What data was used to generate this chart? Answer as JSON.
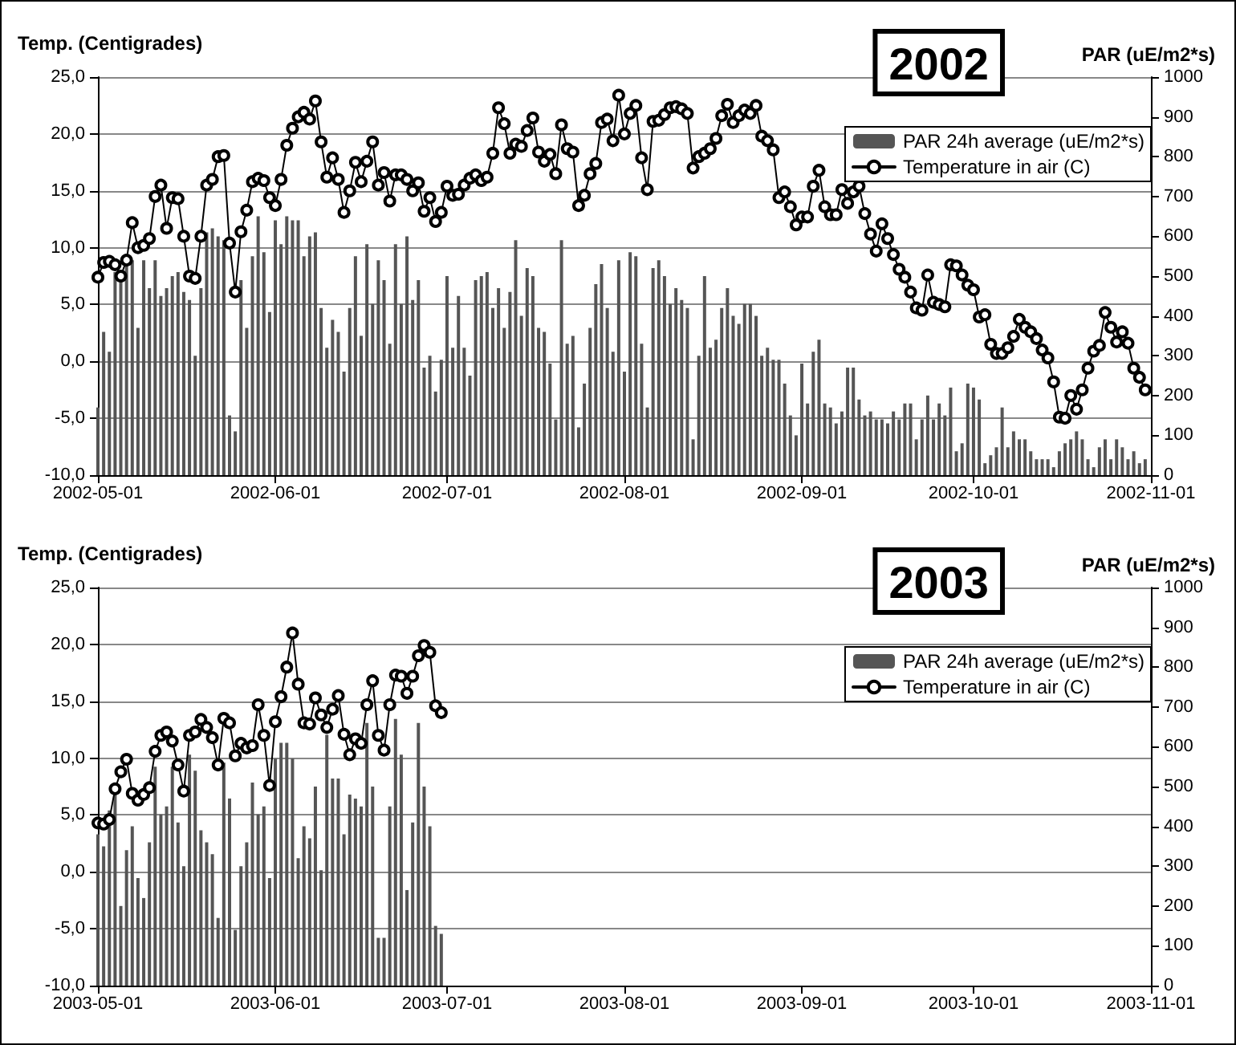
{
  "chart_data": [
    {
      "type": "line",
      "ylabel": "Temp. (Centigrades)",
      "y2label": "PAR (uE/m2*s)",
      "annotations": [
        "2002"
      ],
      "grid": "y",
      "legend": "top right",
      "x": [
        "2002-05-01",
        "2002-05-02",
        "2002-05-03",
        "2002-05-04",
        "2002-05-05",
        "2002-05-06",
        "2002-05-07",
        "2002-05-08",
        "2002-05-09",
        "2002-05-10",
        "2002-05-11",
        "2002-05-12",
        "2002-05-13",
        "2002-05-14",
        "2002-05-15",
        "2002-05-16",
        "2002-05-17",
        "2002-05-18",
        "2002-05-19",
        "2002-05-20",
        "2002-05-21",
        "2002-05-22",
        "2002-05-23",
        "2002-05-24",
        "2002-05-25",
        "2002-05-26",
        "2002-05-27",
        "2002-05-28",
        "2002-05-29",
        "2002-05-30",
        "2002-05-31",
        "2002-06-01",
        "2002-06-02",
        "2002-06-03",
        "2002-06-04",
        "2002-06-05",
        "2002-06-06",
        "2002-06-07",
        "2002-06-08",
        "2002-06-09",
        "2002-06-10",
        "2002-06-11",
        "2002-06-12",
        "2002-06-13",
        "2002-06-14",
        "2002-06-15",
        "2002-06-16",
        "2002-06-17",
        "2002-06-18",
        "2002-06-19",
        "2002-06-20",
        "2002-06-21",
        "2002-06-22",
        "2002-06-23",
        "2002-06-24",
        "2002-06-25",
        "2002-06-26",
        "2002-06-27",
        "2002-06-28",
        "2002-06-29",
        "2002-06-30",
        "2002-07-01",
        "2002-07-02",
        "2002-07-03",
        "2002-07-04",
        "2002-07-05",
        "2002-07-06",
        "2002-07-07",
        "2002-07-08",
        "2002-07-09",
        "2002-07-10",
        "2002-07-11",
        "2002-07-12",
        "2002-07-13",
        "2002-07-14",
        "2002-07-15",
        "2002-07-16",
        "2002-07-17",
        "2002-07-18",
        "2002-07-19",
        "2002-07-20",
        "2002-07-21",
        "2002-07-22",
        "2002-07-23",
        "2002-07-24",
        "2002-07-25",
        "2002-07-26",
        "2002-07-27",
        "2002-07-28",
        "2002-07-29",
        "2002-07-30",
        "2002-07-31",
        "2002-08-01",
        "2002-08-02",
        "2002-08-03",
        "2002-08-04",
        "2002-08-05",
        "2002-08-06",
        "2002-08-07",
        "2002-08-08",
        "2002-08-09",
        "2002-08-10",
        "2002-08-11",
        "2002-08-12",
        "2002-08-13",
        "2002-08-14",
        "2002-08-15",
        "2002-08-16",
        "2002-08-17",
        "2002-08-18",
        "2002-08-19",
        "2002-08-20",
        "2002-08-21",
        "2002-08-22",
        "2002-08-23",
        "2002-08-24",
        "2002-08-25",
        "2002-08-26",
        "2002-08-27",
        "2002-08-28",
        "2002-08-29",
        "2002-08-30",
        "2002-08-31",
        "2002-09-01",
        "2002-09-02",
        "2002-09-03",
        "2002-09-04",
        "2002-09-05",
        "2002-09-06",
        "2002-09-07",
        "2002-09-08",
        "2002-09-09",
        "2002-09-10",
        "2002-09-11",
        "2002-09-12",
        "2002-09-13",
        "2002-09-14",
        "2002-09-15",
        "2002-09-16",
        "2002-09-17",
        "2002-09-18",
        "2002-09-19",
        "2002-09-20",
        "2002-09-21",
        "2002-09-22",
        "2002-09-23",
        "2002-09-24",
        "2002-09-25",
        "2002-09-26",
        "2002-09-27",
        "2002-09-28",
        "2002-09-29",
        "2002-09-30",
        "2002-10-01",
        "2002-10-02",
        "2002-10-03",
        "2002-10-04",
        "2002-10-05",
        "2002-10-06",
        "2002-10-07",
        "2002-10-08",
        "2002-10-09",
        "2002-10-10",
        "2002-10-11",
        "2002-10-12",
        "2002-10-13",
        "2002-10-14",
        "2002-10-15",
        "2002-10-16",
        "2002-10-17",
        "2002-10-18",
        "2002-10-19",
        "2002-10-20",
        "2002-10-21",
        "2002-10-22",
        "2002-10-23",
        "2002-10-24",
        "2002-10-25",
        "2002-10-26",
        "2002-10-27",
        "2002-10-28",
        "2002-10-29",
        "2002-10-30",
        "2002-10-31"
      ],
      "xlim": [
        "2002-05-01",
        "2002-11-01"
      ],
      "xticks": [
        "2002-05-01",
        "2002-06-01",
        "2002-07-01",
        "2002-08-01",
        "2002-09-01",
        "2002-10-01",
        "2002-11-01"
      ],
      "ylim": [
        -10,
        25
      ],
      "yticks": [
        {
          "value": -10,
          "label": "-10,0"
        },
        {
          "value": -5,
          "label": "-5,0"
        },
        {
          "value": 0,
          "label": "0,0"
        },
        {
          "value": 5,
          "label": "5,0"
        },
        {
          "value": 10,
          "label": "10,0"
        },
        {
          "value": 15,
          "label": "15,0"
        },
        {
          "value": 20,
          "label": "20,0"
        },
        {
          "value": 25,
          "label": "25,0"
        }
      ],
      "y2lim": [
        0,
        1000
      ],
      "y2ticks": [
        0,
        100,
        200,
        300,
        400,
        500,
        600,
        700,
        800,
        900,
        1000
      ],
      "series": [
        {
          "name": "PAR 24h average (uE/m2*s)",
          "type": "bar",
          "axis": "y2",
          "color": "#555555",
          "values": [
            170,
            360,
            310,
            510,
            490,
            540,
            540,
            370,
            540,
            470,
            540,
            450,
            470,
            500,
            510,
            460,
            440,
            300,
            470,
            610,
            620,
            600,
            590,
            150,
            110,
            490,
            370,
            550,
            650,
            560,
            410,
            640,
            580,
            650,
            640,
            640,
            550,
            600,
            610,
            420,
            320,
            390,
            360,
            260,
            420,
            550,
            350,
            580,
            430,
            540,
            490,
            330,
            580,
            430,
            600,
            440,
            490,
            270,
            300,
            210,
            290,
            500,
            320,
            450,
            320,
            250,
            490,
            500,
            510,
            420,
            470,
            370,
            460,
            590,
            400,
            520,
            500,
            370,
            360,
            280,
            140,
            590,
            330,
            350,
            120,
            230,
            370,
            480,
            530,
            420,
            310,
            540,
            260,
            560,
            550,
            330,
            170,
            520,
            540,
            500,
            430,
            470,
            440,
            420,
            90,
            300,
            500,
            320,
            340,
            420,
            470,
            400,
            380,
            430,
            430,
            400,
            300,
            320,
            290,
            290,
            230,
            150,
            100,
            280,
            180,
            310,
            340,
            180,
            170,
            130,
            160,
            270,
            270,
            190,
            150,
            160,
            140,
            140,
            130,
            160,
            140,
            180,
            180,
            90,
            140,
            200,
            140,
            180,
            150,
            220,
            60,
            80,
            230,
            220,
            190,
            30,
            50,
            70,
            170,
            70,
            110,
            90,
            90,
            60,
            40,
            40,
            40,
            20,
            60,
            80,
            90,
            110,
            90,
            40,
            20,
            70,
            90,
            40,
            90,
            70,
            40,
            60,
            30,
            40
          ]
        },
        {
          "name": "Temperature in air (C)",
          "color": "#000000",
          "marker": "circle",
          "values": [
            7.4,
            8.7,
            8.8,
            8.5,
            7.5,
            8.9,
            12.2,
            10.0,
            10.2,
            10.8,
            14.5,
            15.5,
            11.7,
            14.4,
            14.3,
            11.0,
            7.5,
            7.3,
            11.0,
            15.5,
            16.0,
            18.0,
            18.1,
            10.4,
            6.1,
            11.4,
            13.3,
            15.8,
            16.1,
            15.9,
            14.4,
            13.7,
            16.0,
            19.0,
            20.5,
            21.5,
            21.9,
            21.3,
            22.9,
            19.3,
            16.2,
            17.9,
            16.0,
            13.1,
            15.0,
            17.5,
            15.8,
            17.6,
            19.3,
            15.5,
            16.6,
            14.1,
            16.4,
            16.4,
            16.0,
            15.0,
            15.7,
            13.2,
            14.4,
            12.3,
            13.1,
            15.4,
            14.6,
            14.7,
            15.5,
            16.1,
            16.4,
            15.9,
            16.2,
            18.3,
            22.3,
            20.9,
            18.3,
            19.1,
            18.9,
            20.3,
            21.4,
            18.4,
            17.6,
            18.2,
            16.5,
            20.8,
            18.7,
            18.4,
            13.7,
            14.6,
            16.5,
            17.4,
            21.0,
            21.3,
            19.4,
            23.4,
            20.0,
            21.8,
            22.5,
            17.9,
            15.1,
            21.1,
            21.2,
            21.7,
            22.3,
            22.4,
            22.2,
            21.8,
            17.0,
            18.0,
            18.3,
            18.7,
            19.6,
            21.6,
            22.6,
            21.0,
            21.6,
            22.1,
            21.8,
            22.5,
            19.8,
            19.4,
            18.6,
            14.4,
            14.9,
            13.6,
            12.0,
            12.7,
            12.7,
            15.4,
            16.8,
            13.6,
            12.9,
            12.9,
            15.1,
            13.9,
            14.9,
            15.4,
            13.0,
            11.2,
            9.7,
            12.1,
            10.8,
            9.4,
            8.1,
            7.4,
            6.1,
            4.7,
            4.5,
            7.6,
            5.2,
            5.0,
            4.8,
            8.5,
            8.4,
            7.6,
            6.7,
            6.3,
            3.9,
            4.1,
            1.5,
            0.7,
            0.7,
            1.2,
            2.2,
            3.7,
            3.0,
            2.6,
            2.0,
            1.0,
            0.3,
            -1.8,
            -4.9,
            -5.0,
            -3.0,
            -4.2,
            -2.5,
            -0.6,
            0.9,
            1.4,
            4.3,
            3.0,
            1.7,
            2.6,
            1.6,
            -0.6,
            -1.4,
            -2.5
          ]
        }
      ]
    },
    {
      "type": "line",
      "ylabel": "Temp. (Centigrades)",
      "y2label": "PAR (uE/m2*s)",
      "annotations": [
        "2003"
      ],
      "grid": "y",
      "legend": "top right",
      "x": [
        "2003-05-01",
        "2003-05-02",
        "2003-05-03",
        "2003-05-04",
        "2003-05-05",
        "2003-05-06",
        "2003-05-07",
        "2003-05-08",
        "2003-05-09",
        "2003-05-10",
        "2003-05-11",
        "2003-05-12",
        "2003-05-13",
        "2003-05-14",
        "2003-05-15",
        "2003-05-16",
        "2003-05-17",
        "2003-05-18",
        "2003-05-19",
        "2003-05-20",
        "2003-05-21",
        "2003-05-22",
        "2003-05-23",
        "2003-05-24",
        "2003-05-25",
        "2003-05-26",
        "2003-05-27",
        "2003-05-28",
        "2003-05-29",
        "2003-05-30",
        "2003-05-31",
        "2003-06-01",
        "2003-06-02",
        "2003-06-03",
        "2003-06-04",
        "2003-06-05",
        "2003-06-06",
        "2003-06-07",
        "2003-06-08",
        "2003-06-09",
        "2003-06-10",
        "2003-06-11",
        "2003-06-12",
        "2003-06-13",
        "2003-06-14",
        "2003-06-15",
        "2003-06-16",
        "2003-06-17",
        "2003-06-18",
        "2003-06-19",
        "2003-06-20",
        "2003-06-21",
        "2003-06-22",
        "2003-06-23",
        "2003-06-24",
        "2003-06-25",
        "2003-06-26",
        "2003-06-27",
        "2003-06-28",
        "2003-06-29",
        "2003-06-30"
      ],
      "xlim": [
        "2003-05-01",
        "2003-11-01"
      ],
      "xticks": [
        "2003-05-01",
        "2003-06-01",
        "2003-07-01",
        "2003-08-01",
        "2003-09-01",
        "2003-10-01",
        "2003-11-01"
      ],
      "ylim": [
        -10,
        25
      ],
      "yticks": [
        {
          "value": -10,
          "label": "-10,0"
        },
        {
          "value": -5,
          "label": "-5,0"
        },
        {
          "value": 0,
          "label": "0,0"
        },
        {
          "value": 5,
          "label": "5,0"
        },
        {
          "value": 10,
          "label": "10,0"
        },
        {
          "value": 15,
          "label": "15,0"
        },
        {
          "value": 20,
          "label": "20,0"
        },
        {
          "value": 25,
          "label": "25,0"
        }
      ],
      "y2lim": [
        0,
        1000
      ],
      "y2ticks": [
        0,
        100,
        200,
        300,
        400,
        500,
        600,
        700,
        800,
        900,
        1000
      ],
      "series": [
        {
          "name": "PAR 24h average (uE/m2*s)",
          "type": "bar",
          "axis": "y2",
          "color": "#555555",
          "values": [
            380,
            350,
            440,
            490,
            200,
            340,
            400,
            270,
            220,
            360,
            550,
            430,
            450,
            550,
            410,
            300,
            580,
            540,
            390,
            360,
            330,
            170,
            560,
            470,
            140,
            300,
            360,
            510,
            430,
            450,
            270,
            570,
            610,
            610,
            570,
            320,
            400,
            370,
            500,
            290,
            630,
            520,
            520,
            380,
            480,
            470,
            450,
            660,
            500,
            120,
            120,
            450,
            670,
            580,
            240,
            410,
            660,
            500,
            400,
            150,
            130
          ]
        },
        {
          "name": "Temperature in air (C)",
          "color": "#000000",
          "marker": "circle",
          "values": [
            4.3,
            4.2,
            4.6,
            7.3,
            8.8,
            9.9,
            6.9,
            6.3,
            6.8,
            7.4,
            10.6,
            12.0,
            12.3,
            11.5,
            9.4,
            7.1,
            12.0,
            12.3,
            13.4,
            12.7,
            11.8,
            9.4,
            13.5,
            13.1,
            10.2,
            11.3,
            10.9,
            11.1,
            14.7,
            12.0,
            7.6,
            13.2,
            15.4,
            18.0,
            21.0,
            16.5,
            13.1,
            13.0,
            15.3,
            13.8,
            12.7,
            14.3,
            15.5,
            12.1,
            10.3,
            11.7,
            11.3,
            14.7,
            16.8,
            12.0,
            10.7,
            14.7,
            17.3,
            17.2,
            15.7,
            17.2,
            19.0,
            19.9,
            19.3,
            14.6,
            14.0
          ]
        }
      ]
    }
  ]
}
